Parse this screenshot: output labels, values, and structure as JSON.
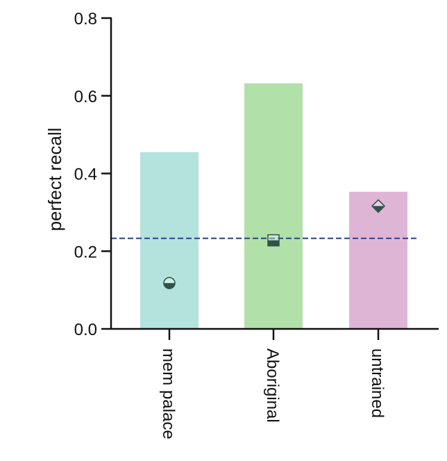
{
  "chart_data": {
    "type": "bar",
    "title": "",
    "xlabel": "",
    "ylabel": "perfect recall",
    "ylim": [
      0,
      0.8
    ],
    "yticks": [
      0.0,
      0.2,
      0.4,
      0.6,
      0.8
    ],
    "ytick_labels": [
      "0.0",
      "0.2",
      "0.4",
      "0.6",
      "0.8"
    ],
    "categories": [
      "mem palace",
      "Aboriginal",
      "untrained"
    ],
    "values": [
      0.455,
      0.632,
      0.353
    ],
    "bar_colors": [
      "#b3e3dc",
      "#b2e0a9",
      "#dfb5d6"
    ],
    "markers": {
      "values": [
        0.118,
        0.228,
        0.316
      ],
      "shapes": [
        "circle",
        "square",
        "diamond"
      ],
      "color": "#2f5249"
    },
    "reference_line": {
      "value": 0.233,
      "style": "dashed",
      "color": "#2a3f9a"
    },
    "grid": false,
    "legend": "none"
  }
}
